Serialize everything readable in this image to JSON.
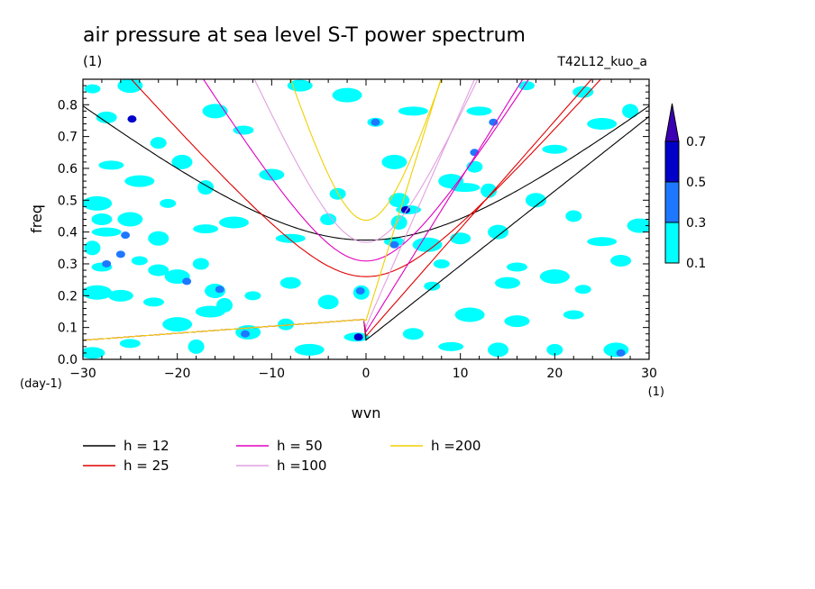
{
  "chart_data": {
    "type": "heatmap",
    "title": "air pressure at sea level S-T power spectrum",
    "subtitle_left": "(1)",
    "subtitle_right": "T42L12_kuo_a",
    "xlabel": "wvn",
    "ylabel": "freq",
    "x_unit": "(1)",
    "y_unit": "(day-1)",
    "xlim": [
      -30,
      30
    ],
    "ylim": [
      0,
      0.88
    ],
    "x_ticks": [
      -30,
      -20,
      -10,
      0,
      10,
      20,
      30
    ],
    "y_ticks": [
      0.0,
      0.1,
      0.2,
      0.3,
      0.4,
      0.5,
      0.6,
      0.7,
      0.8
    ],
    "y_tick_labels": [
      "0.0",
      "0.1",
      "0.2",
      "0.3",
      "0.4",
      "0.5",
      "0.6",
      "0.7",
      "0.8"
    ],
    "colorbar": {
      "levels": [
        "0.1",
        "0.3",
        "0.5",
        "0.7"
      ],
      "colors": [
        "#00ffff",
        "#1e78ff",
        "#0000c8",
        "#3c00b4"
      ]
    },
    "patches": [
      {
        "x": -29.0,
        "y": 0.85,
        "level": 0
      },
      {
        "x": -27.5,
        "y": 0.76,
        "level": 0
      },
      {
        "x": -25.0,
        "y": 0.86,
        "level": 0
      },
      {
        "x": -24.8,
        "y": 0.755,
        "level": 2
      },
      {
        "x": -22.0,
        "y": 0.68,
        "level": 0
      },
      {
        "x": -19.5,
        "y": 0.62,
        "level": 0
      },
      {
        "x": -27.0,
        "y": 0.61,
        "level": 0
      },
      {
        "x": -24.0,
        "y": 0.56,
        "level": 0
      },
      {
        "x": -17.0,
        "y": 0.54,
        "level": 0
      },
      {
        "x": -13.0,
        "y": 0.72,
        "level": 0
      },
      {
        "x": -10.0,
        "y": 0.58,
        "level": 0
      },
      {
        "x": -28.5,
        "y": 0.49,
        "level": 0
      },
      {
        "x": -21.0,
        "y": 0.49,
        "level": 0
      },
      {
        "x": -28.0,
        "y": 0.44,
        "level": 0
      },
      {
        "x": -25.0,
        "y": 0.44,
        "level": 0
      },
      {
        "x": -27.5,
        "y": 0.4,
        "level": 0
      },
      {
        "x": -25.5,
        "y": 0.39,
        "level": 1
      },
      {
        "x": -22.0,
        "y": 0.38,
        "level": 0
      },
      {
        "x": -17.0,
        "y": 0.41,
        "level": 0
      },
      {
        "x": -14.0,
        "y": 0.43,
        "level": 0
      },
      {
        "x": -29.0,
        "y": 0.35,
        "level": 0
      },
      {
        "x": -28.0,
        "y": 0.29,
        "level": 0
      },
      {
        "x": -27.5,
        "y": 0.3,
        "level": 1
      },
      {
        "x": -26.0,
        "y": 0.33,
        "level": 1
      },
      {
        "x": -24.0,
        "y": 0.31,
        "level": 0
      },
      {
        "x": -22.0,
        "y": 0.28,
        "level": 0
      },
      {
        "x": -20.0,
        "y": 0.26,
        "level": 0
      },
      {
        "x": -19.0,
        "y": 0.245,
        "level": 1
      },
      {
        "x": -17.5,
        "y": 0.3,
        "level": 0
      },
      {
        "x": -16.0,
        "y": 0.215,
        "level": 0
      },
      {
        "x": -15.5,
        "y": 0.22,
        "level": 1
      },
      {
        "x": -16.5,
        "y": 0.15,
        "level": 0
      },
      {
        "x": -15.0,
        "y": 0.17,
        "level": 0
      },
      {
        "x": -22.5,
        "y": 0.18,
        "level": 0
      },
      {
        "x": -26.0,
        "y": 0.2,
        "level": 0
      },
      {
        "x": -28.5,
        "y": 0.21,
        "level": 0
      },
      {
        "x": -12.0,
        "y": 0.2,
        "level": 0
      },
      {
        "x": -8.0,
        "y": 0.24,
        "level": 0
      },
      {
        "x": -12.5,
        "y": 0.085,
        "level": 0
      },
      {
        "x": -12.8,
        "y": 0.08,
        "level": 1
      },
      {
        "x": -8.5,
        "y": 0.11,
        "level": 0
      },
      {
        "x": -4.0,
        "y": 0.18,
        "level": 0
      },
      {
        "x": -1.0,
        "y": 0.07,
        "level": 0
      },
      {
        "x": -0.8,
        "y": 0.07,
        "level": 2
      },
      {
        "x": -0.5,
        "y": 0.21,
        "level": 0
      },
      {
        "x": -0.6,
        "y": 0.215,
        "level": 1
      },
      {
        "x": -7.0,
        "y": 0.86,
        "level": 0
      },
      {
        "x": -2.0,
        "y": 0.83,
        "level": 0
      },
      {
        "x": 1.0,
        "y": 0.745,
        "level": 0
      },
      {
        "x": 1.0,
        "y": 0.745,
        "level": 1
      },
      {
        "x": 3.0,
        "y": 0.62,
        "level": 0
      },
      {
        "x": 5.0,
        "y": 0.78,
        "level": 0
      },
      {
        "x": -3.0,
        "y": 0.52,
        "level": 0
      },
      {
        "x": 3.5,
        "y": 0.5,
        "level": 0
      },
      {
        "x": 4.5,
        "y": 0.47,
        "level": 0
      },
      {
        "x": 4.2,
        "y": 0.47,
        "level": 2
      },
      {
        "x": 3.5,
        "y": 0.43,
        "level": 0
      },
      {
        "x": 3.0,
        "y": 0.37,
        "level": 0
      },
      {
        "x": 3.0,
        "y": 0.36,
        "level": 1
      },
      {
        "x": 6.5,
        "y": 0.36,
        "level": 0
      },
      {
        "x": 8.0,
        "y": 0.3,
        "level": 0
      },
      {
        "x": 10.0,
        "y": 0.38,
        "level": 0
      },
      {
        "x": 9.0,
        "y": 0.56,
        "level": 0
      },
      {
        "x": 10.5,
        "y": 0.54,
        "level": 0
      },
      {
        "x": 11.5,
        "y": 0.605,
        "level": 0
      },
      {
        "x": 11.5,
        "y": 0.65,
        "level": 1
      },
      {
        "x": 12.0,
        "y": 0.78,
        "level": 0
      },
      {
        "x": 13.5,
        "y": 0.745,
        "level": 1
      },
      {
        "x": 13.0,
        "y": 0.53,
        "level": 0
      },
      {
        "x": 16.0,
        "y": 0.29,
        "level": 0
      },
      {
        "x": 15.0,
        "y": 0.24,
        "level": 0
      },
      {
        "x": 20.0,
        "y": 0.26,
        "level": 0
      },
      {
        "x": 23.0,
        "y": 0.22,
        "level": 0
      },
      {
        "x": 27.0,
        "y": 0.31,
        "level": 0
      },
      {
        "x": 29.0,
        "y": 0.42,
        "level": 0
      },
      {
        "x": 25.0,
        "y": 0.37,
        "level": 0
      },
      {
        "x": 22.0,
        "y": 0.45,
        "level": 0
      },
      {
        "x": 18.0,
        "y": 0.5,
        "level": 0
      },
      {
        "x": 20.0,
        "y": 0.66,
        "level": 0
      },
      {
        "x": 25.0,
        "y": 0.74,
        "level": 0
      },
      {
        "x": 28.0,
        "y": 0.78,
        "level": 0
      },
      {
        "x": 22.0,
        "y": 0.14,
        "level": 0
      },
      {
        "x": 16.0,
        "y": 0.12,
        "level": 0
      },
      {
        "x": 11.0,
        "y": 0.14,
        "level": 0
      },
      {
        "x": 7.0,
        "y": 0.23,
        "level": 0
      },
      {
        "x": 5.0,
        "y": 0.08,
        "level": 0
      },
      {
        "x": 26.5,
        "y": 0.03,
        "level": 0
      },
      {
        "x": 27.0,
        "y": 0.02,
        "level": 1
      },
      {
        "x": 20.0,
        "y": 0.03,
        "level": 0
      },
      {
        "x": 14.0,
        "y": 0.03,
        "level": 0
      },
      {
        "x": 9.0,
        "y": 0.04,
        "level": 0
      },
      {
        "x": -6.0,
        "y": 0.03,
        "level": 0
      },
      {
        "x": -18.0,
        "y": 0.04,
        "level": 0
      },
      {
        "x": -25.0,
        "y": 0.05,
        "level": 0
      },
      {
        "x": -29.0,
        "y": 0.02,
        "level": 0
      },
      {
        "x": -20.0,
        "y": 0.11,
        "level": 0
      },
      {
        "x": 17.0,
        "y": 0.86,
        "level": 0
      },
      {
        "x": 23.0,
        "y": 0.84,
        "level": 0
      },
      {
        "x": -16.0,
        "y": 0.78,
        "level": 0
      },
      {
        "x": -8.0,
        "y": 0.38,
        "level": 0
      },
      {
        "x": -4.0,
        "y": 0.44,
        "level": 0
      },
      {
        "x": 14.0,
        "y": 0.4,
        "level": 0
      }
    ],
    "series": [
      {
        "name": "h = 12",
        "h": 12,
        "color": "#000000"
      },
      {
        "name": "h = 25",
        "h": 25,
        "color": "#e00000"
      },
      {
        "name": "h = 50",
        "h": 50,
        "color": "#e000c0"
      },
      {
        "name": "h =100",
        "h": 100,
        "color": "#e0a0e0"
      },
      {
        "name": "h =200",
        "h": 200,
        "color": "#f0d000"
      }
    ]
  }
}
